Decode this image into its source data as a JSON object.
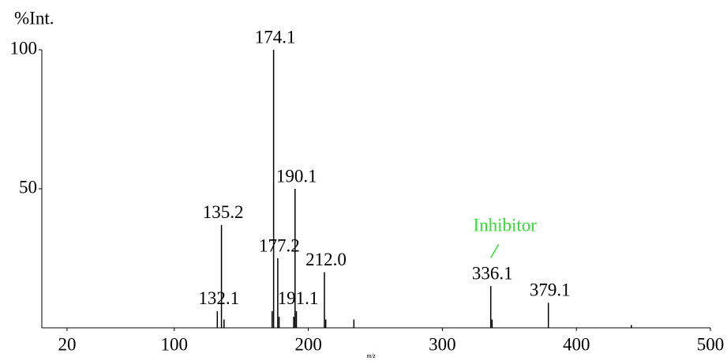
{
  "chart_data": {
    "type": "spectrum",
    "y_label": "%Int.",
    "x_label": "m/z",
    "x": [
      132.1,
      135.2,
      174.1,
      177.2,
      190.1,
      191.1,
      212.0,
      336.1,
      379.1
    ],
    "x_labels": [
      "132.1",
      "135.2",
      "174.1",
      "177.2",
      "190.1",
      "191.1",
      "212.0",
      "336.1",
      "379.1"
    ],
    "values": [
      6,
      37,
      100,
      25,
      50,
      6,
      20,
      15,
      9
    ],
    "minor_x": [
      137.1,
      173.0,
      178.2,
      189.1,
      213.0,
      234.0,
      337.1,
      441.0
    ],
    "minor_values": [
      3,
      6,
      4,
      4,
      3,
      3,
      3,
      1
    ],
    "color": "#000000",
    "xlim": [
      0,
      500
    ],
    "xticks": [
      20,
      100,
      200,
      300,
      400,
      500
    ],
    "ylim": [
      0,
      100
    ],
    "yticks": [
      50,
      100
    ],
    "annotation": {
      "text": "Inhibitor",
      "x": 336.1,
      "color": "#33dd33"
    }
  }
}
